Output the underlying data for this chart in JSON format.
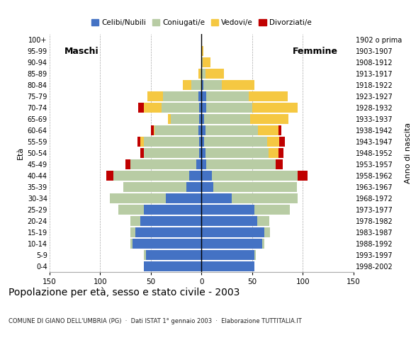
{
  "age_groups": [
    "0-4",
    "5-9",
    "10-14",
    "15-19",
    "20-24",
    "25-29",
    "30-34",
    "35-39",
    "40-44",
    "45-49",
    "50-54",
    "55-59",
    "60-64",
    "65-69",
    "70-74",
    "75-79",
    "80-84",
    "85-89",
    "90-94",
    "95-99",
    "100+"
  ],
  "birth_years": [
    "1998-2002",
    "1993-1997",
    "1988-1992",
    "1983-1987",
    "1978-1982",
    "1973-1977",
    "1968-1972",
    "1963-1967",
    "1958-1962",
    "1953-1957",
    "1948-1952",
    "1943-1947",
    "1938-1942",
    "1933-1937",
    "1928-1932",
    "1923-1927",
    "1918-1922",
    "1913-1917",
    "1908-1912",
    "1903-1907",
    "1902 o prima"
  ],
  "males": {
    "celibinubili": [
      57,
      55,
      68,
      65,
      60,
      57,
      35,
      15,
      12,
      5,
      2,
      2,
      3,
      2,
      2,
      3,
      0,
      0,
      0,
      0,
      0
    ],
    "coniugati": [
      0,
      2,
      2,
      5,
      10,
      25,
      55,
      62,
      75,
      65,
      55,
      55,
      43,
      28,
      37,
      35,
      10,
      1,
      0,
      0,
      0
    ],
    "vedovi": [
      0,
      0,
      0,
      0,
      0,
      0,
      0,
      0,
      0,
      0,
      0,
      3,
      1,
      3,
      18,
      15,
      8,
      2,
      0,
      0,
      0
    ],
    "divorziati": [
      0,
      0,
      0,
      0,
      0,
      0,
      0,
      0,
      7,
      5,
      3,
      3,
      3,
      0,
      5,
      0,
      0,
      0,
      0,
      0,
      0
    ]
  },
  "females": {
    "celibinubili": [
      52,
      52,
      60,
      62,
      55,
      52,
      30,
      12,
      10,
      5,
      4,
      3,
      4,
      3,
      5,
      5,
      2,
      0,
      0,
      0,
      0
    ],
    "coniugate": [
      0,
      2,
      2,
      6,
      12,
      35,
      65,
      82,
      85,
      68,
      62,
      62,
      52,
      45,
      45,
      42,
      18,
      4,
      1,
      0,
      0
    ],
    "vedove": [
      0,
      0,
      0,
      0,
      0,
      0,
      0,
      0,
      0,
      0,
      10,
      12,
      20,
      38,
      45,
      38,
      32,
      18,
      8,
      2,
      0
    ],
    "divorziate": [
      0,
      0,
      0,
      0,
      0,
      0,
      0,
      0,
      10,
      7,
      5,
      5,
      3,
      0,
      0,
      0,
      0,
      0,
      0,
      0,
      0
    ]
  },
  "colors": {
    "celibinubili": "#4472c4",
    "coniugati": "#b8cca4",
    "vedovi": "#f5c842",
    "divorziati": "#c00000"
  },
  "xlim": 150,
  "title": "Popolazione per età, sesso e stato civile - 2003",
  "subtitle": "COMUNE DI GIANO DELL'UMBRIA (PG)  ·  Dati ISTAT 1° gennaio 2003  ·  Elaborazione TUTTITALIA.IT",
  "ylabel_left": "Età",
  "ylabel_right": "Anno di nascita",
  "label_maschi": "Maschi",
  "label_femmine": "Femmine",
  "legend_labels": [
    "Celibi/Nubili",
    "Coniugati/e",
    "Vedovi/e",
    "Divorziati/e"
  ]
}
